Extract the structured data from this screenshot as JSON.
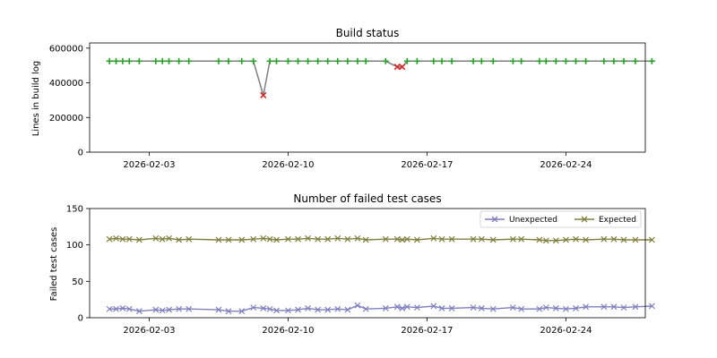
{
  "chart_data": [
    {
      "type": "line",
      "title": "Build status",
      "xlabel": "",
      "ylabel": "Lines in build log",
      "x_axis": "date",
      "xlim": [
        "2026-01-31",
        "2026-02-28"
      ],
      "xticks": [
        "2026-02-03",
        "2026-02-10",
        "2026-02-17",
        "2026-02-24"
      ],
      "ylim": [
        0,
        630000
      ],
      "yticks": [
        0,
        200000,
        400000,
        600000
      ],
      "yticklabels": [
        "0",
        "200000",
        "400000",
        "600000"
      ],
      "legend": null,
      "line_color": "#808080",
      "pass_color": "#2ca02c",
      "fail_color": "#d62728",
      "points": [
        {
          "x": "2026-02-01",
          "y": 525000,
          "status": "pass"
        },
        {
          "x": "2026-02-01 08:00",
          "y": 525000,
          "status": "pass"
        },
        {
          "x": "2026-02-01 16:00",
          "y": 525000,
          "status": "pass"
        },
        {
          "x": "2026-02-02",
          "y": 525000,
          "status": "pass"
        },
        {
          "x": "2026-02-02 12:00",
          "y": 525000,
          "status": "pass"
        },
        {
          "x": "2026-02-03 08:00",
          "y": 525000,
          "status": "pass"
        },
        {
          "x": "2026-02-03 16:00",
          "y": 525000,
          "status": "pass"
        },
        {
          "x": "2026-02-04",
          "y": 525000,
          "status": "pass"
        },
        {
          "x": "2026-02-04 12:00",
          "y": 525000,
          "status": "pass"
        },
        {
          "x": "2026-02-05",
          "y": 525000,
          "status": "pass"
        },
        {
          "x": "2026-02-06 12:00",
          "y": 525000,
          "status": "pass"
        },
        {
          "x": "2026-02-07",
          "y": 525000,
          "status": "pass"
        },
        {
          "x": "2026-02-07 16:00",
          "y": 525000,
          "status": "pass"
        },
        {
          "x": "2026-02-08 06:00",
          "y": 525000,
          "status": "pass"
        },
        {
          "x": "2026-02-08 18:00",
          "y": 328000,
          "status": "fail"
        },
        {
          "x": "2026-02-09 02:00",
          "y": 525000,
          "status": "pass"
        },
        {
          "x": "2026-02-09 10:00",
          "y": 525000,
          "status": "pass"
        },
        {
          "x": "2026-02-10",
          "y": 525000,
          "status": "pass"
        },
        {
          "x": "2026-02-10 12:00",
          "y": 525000,
          "status": "pass"
        },
        {
          "x": "2026-02-11",
          "y": 525000,
          "status": "pass"
        },
        {
          "x": "2026-02-11 12:00",
          "y": 525000,
          "status": "pass"
        },
        {
          "x": "2026-02-12",
          "y": 525000,
          "status": "pass"
        },
        {
          "x": "2026-02-12 12:00",
          "y": 525000,
          "status": "pass"
        },
        {
          "x": "2026-02-13",
          "y": 525000,
          "status": "pass"
        },
        {
          "x": "2026-02-13 12:00",
          "y": 525000,
          "status": "pass"
        },
        {
          "x": "2026-02-13 22:00",
          "y": 525000,
          "status": "pass"
        },
        {
          "x": "2026-02-14 22:00",
          "y": 525000,
          "status": "pass"
        },
        {
          "x": "2026-02-15 12:00",
          "y": 492000,
          "status": "fail"
        },
        {
          "x": "2026-02-15 18:00",
          "y": 492000,
          "status": "fail"
        },
        {
          "x": "2026-02-16",
          "y": 525000,
          "status": "pass"
        },
        {
          "x": "2026-02-16 12:00",
          "y": 525000,
          "status": "pass"
        },
        {
          "x": "2026-02-17 08:00",
          "y": 525000,
          "status": "pass"
        },
        {
          "x": "2026-02-17 18:00",
          "y": 525000,
          "status": "pass"
        },
        {
          "x": "2026-02-18 06:00",
          "y": 525000,
          "status": "pass"
        },
        {
          "x": "2026-02-19 08:00",
          "y": 525000,
          "status": "pass"
        },
        {
          "x": "2026-02-19 18:00",
          "y": 525000,
          "status": "pass"
        },
        {
          "x": "2026-02-20 08:00",
          "y": 525000,
          "status": "pass"
        },
        {
          "x": "2026-02-21 08:00",
          "y": 525000,
          "status": "pass"
        },
        {
          "x": "2026-02-21 18:00",
          "y": 525000,
          "status": "pass"
        },
        {
          "x": "2026-02-22 16:00",
          "y": 525000,
          "status": "pass"
        },
        {
          "x": "2026-02-23",
          "y": 525000,
          "status": "pass"
        },
        {
          "x": "2026-02-23 12:00",
          "y": 525000,
          "status": "pass"
        },
        {
          "x": "2026-02-24",
          "y": 525000,
          "status": "pass"
        },
        {
          "x": "2026-02-24 12:00",
          "y": 525000,
          "status": "pass"
        },
        {
          "x": "2026-02-25",
          "y": 525000,
          "status": "pass"
        },
        {
          "x": "2026-02-25 22:00",
          "y": 525000,
          "status": "pass"
        },
        {
          "x": "2026-02-26 10:00",
          "y": 525000,
          "status": "pass"
        },
        {
          "x": "2026-02-26 22:00",
          "y": 525000,
          "status": "pass"
        },
        {
          "x": "2026-02-27 12:00",
          "y": 525000,
          "status": "pass"
        },
        {
          "x": "2026-02-28 08:00",
          "y": 525000,
          "status": "pass"
        }
      ]
    },
    {
      "type": "line",
      "title": "Number of failed test cases",
      "xlabel": "",
      "ylabel": "Failed test cases",
      "x_axis": "date",
      "xlim": [
        "2026-01-31",
        "2026-02-28"
      ],
      "xticks": [
        "2026-02-03",
        "2026-02-10",
        "2026-02-17",
        "2026-02-24"
      ],
      "ylim": [
        0,
        150
      ],
      "yticks": [
        0,
        50,
        100,
        150
      ],
      "yticklabels": [
        "0",
        "50",
        "100",
        "150"
      ],
      "grid": false,
      "legend": {
        "placement": "top-right",
        "columns": 2
      },
      "x": [
        "2026-02-01",
        "2026-02-01 08:00",
        "2026-02-01 16:00",
        "2026-02-02",
        "2026-02-02 12:00",
        "2026-02-03 08:00",
        "2026-02-03 16:00",
        "2026-02-04",
        "2026-02-04 12:00",
        "2026-02-05",
        "2026-02-06 12:00",
        "2026-02-07",
        "2026-02-07 16:00",
        "2026-02-08 06:00",
        "2026-02-08 18:00",
        "2026-02-09 02:00",
        "2026-02-09 10:00",
        "2026-02-10",
        "2026-02-10 12:00",
        "2026-02-11",
        "2026-02-11 12:00",
        "2026-02-12",
        "2026-02-12 12:00",
        "2026-02-13",
        "2026-02-13 12:00",
        "2026-02-13 22:00",
        "2026-02-14 22:00",
        "2026-02-15 12:00",
        "2026-02-15 18:00",
        "2026-02-16",
        "2026-02-16 12:00",
        "2026-02-17 08:00",
        "2026-02-17 18:00",
        "2026-02-18 06:00",
        "2026-02-19 08:00",
        "2026-02-19 18:00",
        "2026-02-20 08:00",
        "2026-02-21 08:00",
        "2026-02-21 18:00",
        "2026-02-22 16:00",
        "2026-02-23",
        "2026-02-23 12:00",
        "2026-02-24",
        "2026-02-24 12:00",
        "2026-02-25",
        "2026-02-25 22:00",
        "2026-02-26 10:00",
        "2026-02-26 22:00",
        "2026-02-27 12:00",
        "2026-02-28 08:00"
      ],
      "series": [
        {
          "name": "Unexpected",
          "color": "#7f7fbf",
          "marker": "x",
          "values": [
            12,
            12,
            13,
            12,
            9,
            11,
            10,
            11,
            12,
            12,
            11,
            9,
            9,
            14,
            13,
            12,
            10,
            10,
            11,
            13,
            11,
            11,
            12,
            11,
            17,
            12,
            13,
            15,
            13,
            15,
            14,
            16,
            13,
            13,
            14,
            13,
            12,
            14,
            12,
            12,
            14,
            13,
            12,
            13,
            15,
            15,
            15,
            14,
            15,
            16
          ]
        },
        {
          "name": "Expected",
          "color": "#808040",
          "marker": "x",
          "values": [
            108,
            109,
            108,
            108,
            107,
            109,
            108,
            109,
            107,
            108,
            107,
            107,
            107,
            108,
            109,
            108,
            107,
            108,
            108,
            109,
            108,
            108,
            109,
            108,
            109,
            107,
            108,
            108,
            107,
            108,
            107,
            109,
            108,
            108,
            108,
            108,
            107,
            108,
            108,
            107,
            106,
            106,
            107,
            108,
            107,
            108,
            108,
            107,
            107,
            107
          ]
        }
      ]
    }
  ]
}
